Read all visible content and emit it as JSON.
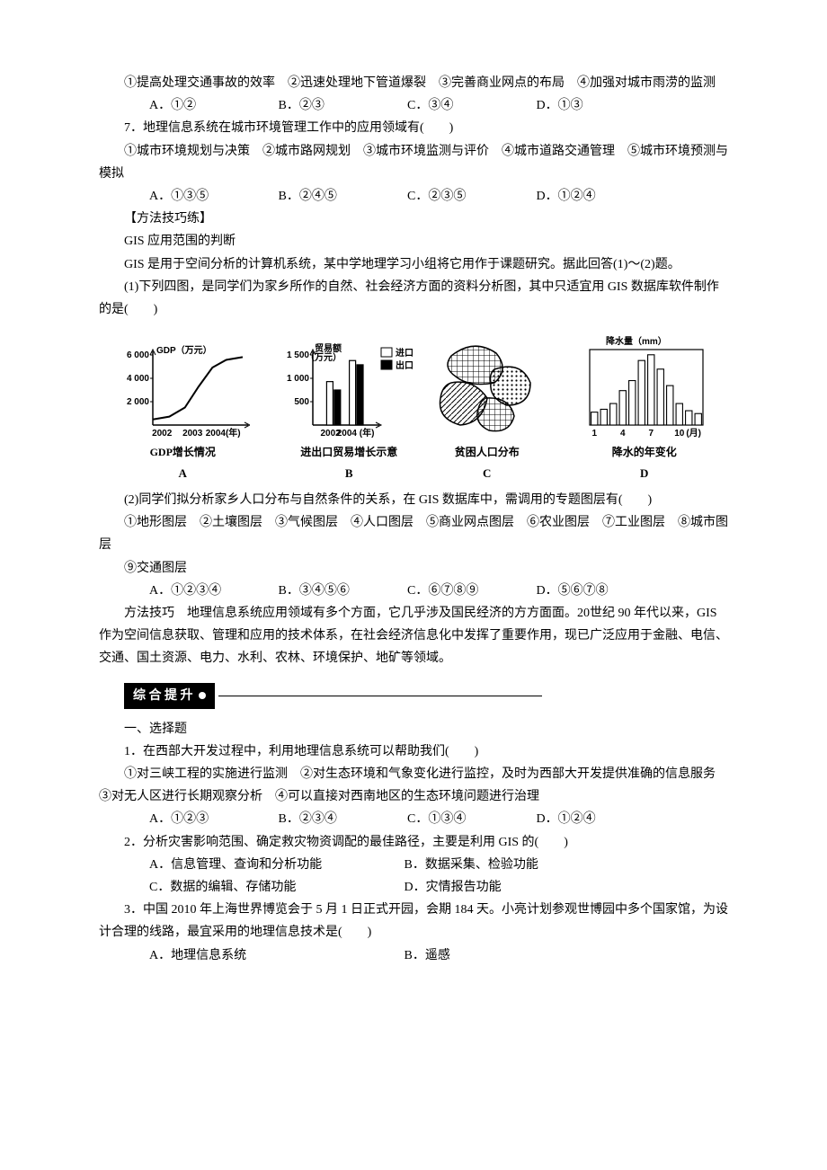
{
  "q6": {
    "stem": "①提高处理交通事故的效率　②迅速处理地下管道爆裂　③完善商业网点的布局　④加强对城市雨涝的监测",
    "opts": {
      "A": "A．①②",
      "B": "B．②③",
      "C": "C．③④",
      "D": "D．①③"
    }
  },
  "q7": {
    "stem": "7．地理信息系统在城市环境管理工作中的应用领域有(　　)",
    "items": "①城市环境规划与决策　②城市路网规划　③城市环境监测与评价　④城市道路交通管理　⑤城市环境预测与模拟",
    "opts": {
      "A": "A．①③⑤",
      "B": "B．②④⑤",
      "C": "C．②③⑤",
      "D": "D．①②④"
    }
  },
  "method_label": "【方法技巧练】",
  "method_title": "GIS 应用范围的判断",
  "method_intro": "GIS 是用于空间分析的计算机系统，某中学地理学习小组将它用作于课题研究。据此回答(1)～(2)题。",
  "p1": {
    "stem": "(1)下列四图，是同学们为家乡所作的自然、社会经济方面的资料分析图，其中只适宜用 GIS 数据库软件制作的是(　　)"
  },
  "panelA": {
    "ylabel": "GDP（万元）",
    "yticks": [
      "6 000",
      "4 000",
      "2 000"
    ],
    "xticks": [
      "2002",
      "2003",
      "2004(年)"
    ],
    "caption": "GDP增长情况",
    "letter": "A",
    "curve": [
      [
        0,
        0.08
      ],
      [
        0.18,
        0.12
      ],
      [
        0.35,
        0.25
      ],
      [
        0.5,
        0.55
      ],
      [
        0.65,
        0.82
      ],
      [
        0.8,
        0.93
      ],
      [
        0.98,
        0.97
      ]
    ],
    "width": 150,
    "height": 110,
    "axis_color": "#000",
    "line_color": "#000"
  },
  "panelB": {
    "ylabel": "贸易额",
    "yunit": "（万元）",
    "yticks": [
      "1 500",
      "1 000",
      "500"
    ],
    "xticks": [
      "2002",
      "2004 (年)"
    ],
    "caption": "进出口贸易增长示意",
    "letter": "B",
    "legend": {
      "import": "进口",
      "export": "出口"
    },
    "bars": [
      {
        "x": 0.22,
        "h": 0.62,
        "fill": "none"
      },
      {
        "x": 0.34,
        "h": 0.5,
        "fill": "solid"
      },
      {
        "x": 0.58,
        "h": 0.92,
        "fill": "none"
      },
      {
        "x": 0.7,
        "h": 0.86,
        "fill": "solid"
      }
    ],
    "bar_w": 0.1,
    "colors": {
      "outline": "#000",
      "solid": "#000",
      "bg": "#fff"
    },
    "width": 160,
    "height": 110
  },
  "panelC": {
    "caption": "贫困人口分布",
    "letter": "C",
    "width": 140,
    "height": 120,
    "stroke": "#000"
  },
  "panelD": {
    "ylabel": "降水量（mm）",
    "xticks": [
      "1",
      "4",
      "7",
      "10",
      "(月)"
    ],
    "caption": "降水的年变化",
    "letter": "D",
    "bars_h": [
      0.18,
      0.22,
      0.3,
      0.48,
      0.62,
      0.9,
      0.98,
      0.78,
      0.55,
      0.3,
      0.2,
      0.16
    ],
    "width": 150,
    "height": 120,
    "axis_color": "#000",
    "fill": "#fff",
    "stroke": "#000"
  },
  "p2": {
    "stem": "(2)同学们拟分析家乡人口分布与自然条件的关系，在 GIS 数据库中，需调用的专题图层有(　　)",
    "items1": "①地形图层　②土壤图层　③气候图层　④人口图层　⑤商业网点图层　⑥农业图层　⑦工业图层　⑧城市图层",
    "items2": "⑨交通图层",
    "opts": {
      "A": "A．①②③④",
      "B": "B．③④⑤⑥",
      "C": "C．⑥⑦⑧⑨",
      "D": "D．⑤⑥⑦⑧"
    }
  },
  "method_tip": "方法技巧　地理信息系统应用领域有多个方面，它几乎涉及国民经济的方方面面。20世纪 90 年代以来，GIS 作为空间信息获取、管理和应用的技术体系，在社会经济信息化中发挥了重要作用，现已广泛应用于金融、电信、交通、国土资源、电力、水利、农林、环境保护、地矿等领域。",
  "section2_label": "综 合 提 升",
  "sec2_sub": "一、选择题",
  "s1": {
    "stem": "1．在西部大开发过程中，利用地理信息系统可以帮助我们(　　)",
    "items": "①对三峡工程的实施进行监测　②对生态环境和气象变化进行监控，及时为西部大开发提供准确的信息服务　③对无人区进行长期观察分析　④可以直接对西南地区的生态环境问题进行治理",
    "opts": {
      "A": "A．①②③",
      "B": "B．②③④",
      "C": "C．①③④",
      "D": "D．①②④"
    }
  },
  "s2": {
    "stem": "2．分析灾害影响范围、确定救灾物资调配的最佳路径，主要是利用 GIS 的(　　)",
    "opts": {
      "A": "A．信息管理、查询和分析功能",
      "B": "B．数据采集、检验功能",
      "C": "C．数据的编辑、存储功能",
      "D": "D．灾情报告功能"
    }
  },
  "s3": {
    "stem": "3．中国 2010 年上海世界博览会于 5 月 1 日正式开园，会期 184 天。小亮计划参观世博园中多个国家馆，为设计合理的线路，最宜采用的地理信息技术是(　　)",
    "opts": {
      "A": "A．地理信息系统",
      "B": "B．遥感"
    }
  }
}
